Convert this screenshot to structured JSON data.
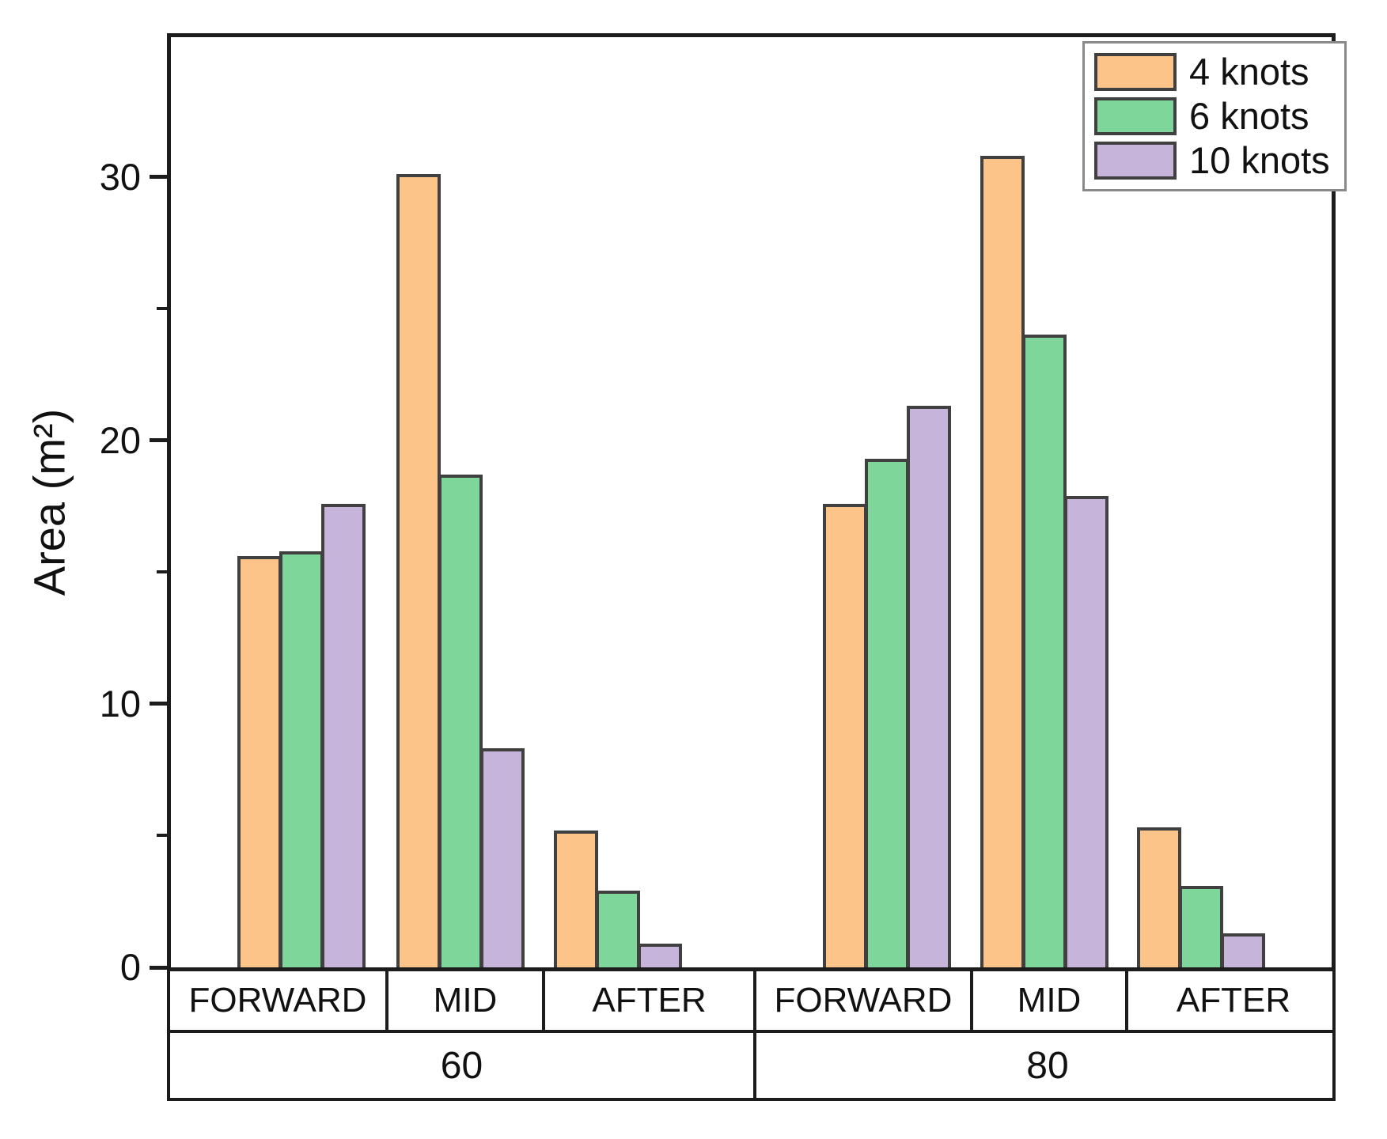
{
  "chart_data": {
    "type": "bar",
    "title": "",
    "ylabel": "Area (m²)",
    "xlabel": "",
    "ylim": [
      0,
      35.3
    ],
    "yticks_major": [
      0,
      10,
      20,
      30
    ],
    "yticks_minor": [
      5,
      15,
      25
    ],
    "grid": false,
    "x_axis": {
      "categories": [
        "FORWARD",
        "MID",
        "AFTER",
        "FORWARD",
        "MID",
        "AFTER"
      ],
      "groups": [
        {
          "label": "60",
          "span": 3
        },
        {
          "label": "80",
          "span": 3
        }
      ]
    },
    "series": [
      {
        "name": "4 knots",
        "color": "#FCC489",
        "values": [
          15.6,
          30.1,
          5.2,
          17.6,
          30.8,
          5.3
        ]
      },
      {
        "name": "6 knots",
        "color": "#7ED69A",
        "values": [
          15.8,
          18.7,
          2.9,
          19.3,
          24.0,
          3.1
        ]
      },
      {
        "name": "10 knots",
        "color": "#C7B4DB",
        "values": [
          17.6,
          8.3,
          0.9,
          21.3,
          17.9,
          1.3
        ]
      }
    ],
    "legend": {
      "position": "top-right",
      "entries": [
        "4 knots",
        "6 knots",
        "10 knots"
      ]
    },
    "bar_border_color": "#404040",
    "axis_color": "#1c1c1c"
  }
}
